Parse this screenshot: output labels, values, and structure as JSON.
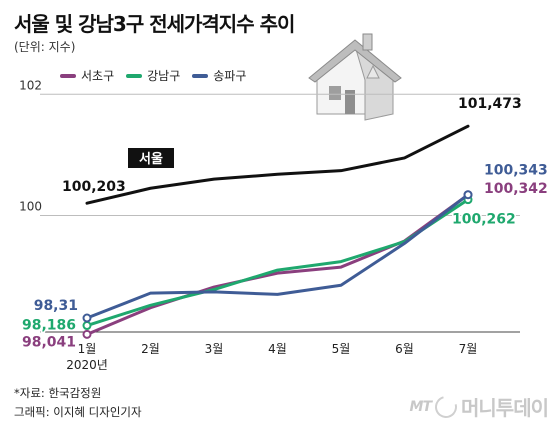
{
  "title": "서울 및 강남3구 전세가격지수 추이",
  "unit_label": "(단위: 지수)",
  "source_lines": [
    "*자료: 한국감정원",
    "그래픽: 이지혜 디자인기자"
  ],
  "logo": {
    "mt": "MT",
    "text": "머니투데이"
  },
  "colors": {
    "seoul": "#111111",
    "seocho": "#8a3f7e",
    "gangnam": "#1fa86e",
    "songpa": "#3f5c96",
    "grid": "#bdbdbd",
    "axis": "#444444"
  },
  "chart_data": {
    "type": "line",
    "title": "서울 및 강남3구 전세가격지수 추이",
    "ylabel": "(단위: 지수)",
    "categories": [
      "1월",
      "2월",
      "3월",
      "4월",
      "5월",
      "6월",
      "7월"
    ],
    "x_sublabel": "2020년",
    "ylim": [
      97.7,
      102.4
    ],
    "y_gridlines": [
      100,
      102
    ],
    "legend_position": "top-left",
    "series": [
      {
        "key": "seoul",
        "name": "서울",
        "values": [
          100.203,
          100.45,
          100.6,
          100.68,
          100.74,
          100.95,
          101.473
        ],
        "label_first": "100,203",
        "label_last": "101,473"
      },
      {
        "key": "seocho",
        "name": "서초구",
        "values": [
          98.041,
          98.48,
          98.82,
          99.05,
          99.15,
          99.58,
          100.342
        ],
        "label_first": "98,041",
        "label_last": "100,342"
      },
      {
        "key": "gangnam",
        "name": "강남구",
        "values": [
          98.186,
          98.52,
          98.78,
          99.1,
          99.24,
          99.57,
          100.262
        ],
        "label_first": "98,186",
        "label_last": "100,262"
      },
      {
        "key": "songpa",
        "name": "송파구",
        "values": [
          98.31,
          98.72,
          98.74,
          98.7,
          98.85,
          99.54,
          100.343
        ],
        "label_first": "98,31",
        "label_last": "100,343"
      }
    ]
  }
}
